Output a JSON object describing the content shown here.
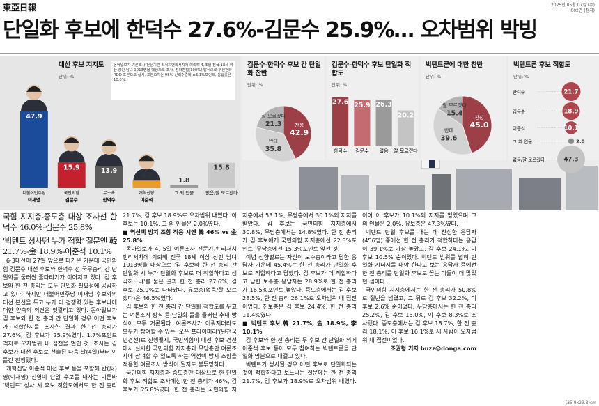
{
  "header": {
    "masthead": "東亞日報",
    "date": "2025년 05월 07일 (수)",
    "page": "002면 (정치)"
  },
  "headline": "단일화 후보에 한덕수 27.6%-김문수 25.9%… 오차범위 박빙",
  "chart_data": [
    {
      "type": "bar",
      "title": "대선 후보 지지도",
      "unit": "단위: %",
      "note": "동아일보가 여론조사 전문기관 리서치앤리서치에 의뢰해 4, 5일 전국 18세 이상 성인 남녀 1013명을 대상으로 조사. 전화면접(100%) 방식으로 무선전화 RDD 표본으로 실시. 표본오차는 95% 신뢰수준에 ±3.1%포인트, 응답률은 10.0%.",
      "groups": [
        "더불어민주당",
        "국민의힘",
        "무소속",
        "개혁신당",
        null,
        null
      ],
      "categories": [
        "이재명",
        "김문수",
        "한덕수",
        "이준석",
        "그 외 인물",
        "없음/잘 모르겠다"
      ],
      "values": [
        47.9,
        15.9,
        13.9,
        4.7,
        1.8,
        15.8
      ],
      "colors": [
        "#1b4c9c",
        "#c4202e",
        "#5a5a5a",
        "#eb9a2e",
        "#9a9a9a",
        "#c9c9c9"
      ]
    },
    {
      "type": "pie",
      "title": "김문수-한덕수 후보 간 단일화 찬반",
      "unit": "단위: %",
      "categories": [
        "찬성",
        "반대",
        "잘 모르겠다"
      ],
      "values": [
        42.9,
        35.8,
        21.3
      ],
      "colors": [
        "#9c3f47",
        "#d3d3d3",
        "#b3b3b3"
      ]
    },
    {
      "type": "bar",
      "title": "김문수-한덕수 후보 단일화 적합도",
      "unit": "단위: %",
      "categories": [
        "한덕수",
        "김문수",
        "없음",
        "잘 모르겠다"
      ],
      "values": [
        27.6,
        25.9,
        26.3,
        20.2
      ],
      "colors": [
        "#9c3f47",
        "#c46b72",
        "#9a9a9a",
        "#c4c4c4"
      ]
    },
    {
      "type": "pie",
      "title": "빅텐트론에 대한 찬반",
      "unit": "단위: %",
      "categories": [
        "찬성",
        "반대",
        "잘 모르겠다"
      ],
      "values": [
        45,
        39.6,
        15.4
      ],
      "value_labels": [
        "45.0",
        "39.6",
        "15.4"
      ],
      "colors": [
        "#9c3f47",
        "#d3d3d3",
        "#b3b3b3"
      ]
    },
    {
      "type": "bubble",
      "title": "빅텐트론 후보 적합도",
      "unit": "단위: %",
      "categories": [
        "한덕수",
        "김문수",
        "이준석",
        "그 외 인물",
        "없음/잘 모르겠다"
      ],
      "values": [
        21.7,
        18.9,
        10.1,
        2,
        47.3
      ],
      "value_labels": [
        "21.7",
        "18.9",
        "10.1",
        "2.0",
        "47.3"
      ],
      "colors": [
        "#b0454d",
        "#b0454d",
        "#b0454d",
        "#8a8a8a",
        "#c4c4c4"
      ]
    }
  ],
  "article": {
    "subheads": [
      "국힘 지지층-중도층 대상 조사선 한덕수 46.0%-김문수 25.8%",
      "'빅텐트 성사땐 누가 적합' 질문엔 韓 21.7%-金 18.9%-이준석 10.1%"
    ],
    "paragraphs": [
      "6·3대선이 27일 앞으로 다가온 가운데 국민의힘 김문수 대선 후보와 한덕수 전 국무총리 간 단일화를 둘러싼 줄다리기가 이어지고 있다. 김 후보와 한 전 총리는 모두 단일화 필요성에 공감하고 있다. 하지만 더불어민주당 이재명 후보와의 대선 본선을 두고 누가 더 경쟁력 있는 후보냐에 대한 양측의 의견은 엇갈리고 있다. 동아일보가 김 후보와 한 전 총리 간 단일화 경우 어떤 후보가 적합한지를 조사한 결과 한 전 총리가 27.6%, 김 후보가 25.9%였다. 1.7%포인트 격차로 오차범위 내 접전을 벌인 것. 조사는 김 후보가 대선 후보로 선출된 다음 날(4일)부터 이틀간 진행됐다.",
      "개혁신당 이준석 대선 후보 등을 포함해 반(反)명(이재명) 진영이 단일 후보를 내자는 이른바 '빅텐트' 성사 시 후보 적합도에서도 한 전 총리 21.7%, 김 후보 18.9%로 오차범위 내였다. 이 후보는 10.1%, 그 외 인물은 2.0%였다.",
      "■ 역선택 방지 조항 적용 시엔 韓 46% vs 金 25.8%",
      "동아일보가 4, 5일 여론조사 전문기관 리서치앤리서치에 의뢰해 전국 18세 이상 성인 남녀 1013명을 대상으로 '김 후보와 한 전 총리 간 단일화 시 누가 단일화 후보로 더 적합하다고 생각하느냐'를 물은 결과 한 전 총리 27.6%, 김 후보 25.9%로 나타났다. 유보층(없음/잘 모르겠다)은 46.5%였다.",
      "김 후보와 한 전 총리 간 단일화 적합도를 두고는 여론조사 방식 등 단일화 룰을 둘러싼 추대 방식이 모두 거론된다. 여론조사가 이뤄지더라도 모두가 참여할 수 있는 '오픈 프라이머리'(완전국민경선)로 진행될지, 국민의힘이 대선 후보 경선에서 실시한 국민의힘 지지층과 무당층만 여론조사에 참여할 수 있도록 하는 역선택 방지 조항을 적용한 여론조사 방식이 될지도 불투명하다.",
      "국민의힘 지지층과 중도층만 대상으로 한 단일화 후보 적합도 조사에선 한 전 총리가 46%, 김 후보가 25.8%였다. 한 전 총리는 국민의힘 지지층에서 53.1%, 무당층에서 30.1%의 지지를 받았다. 김 후보는 국민의힘 지지층에서 30.8%, 무당층에서는 14.8%였다. 한 전 총리가 김 후보에게 국민의힘 지지층에선 22.3%포인트, 무당층에선 15.3%포인트 앞선 것.",
      "이념 성향별로는 자신이 보수층이라고 답한 응답자 가운데 45.4%는 한 전 총리가 단일화 후보로 적합하다고 답했다. 김 후보가 더 적합하다고 답한 보수층 응답자는 28.9%로 한 전 총리가 16.5%포인트 높았다. 중도층에서는 김 후보 28.5%, 한 전 총리 26.1%로 오차범위 내 접전이었다. 진보층은 김 후보 24.4%, 한 전 총리 11.4%였다.",
      "■ 빅텐트 후보 韓 21.7%, 金 18.9%, 李 10.1%",
      "김 후보와 한 전 총리는 두 후보 간 단일화 외에 이준석 후보 등이 모두 참여하는 빅텐트론을 단일화 명분으로 내걸고 있다.",
      "빅텐트가 성사될 경우 어떤 후보로 단일화되는 것이 적합하다고 보느냐는 질문에는 한 전 총리 21.7%, 김 후보가 18.9%로 오차범위 내였다. 이어 이 후보가 10.1%의 지지를 얻었으며 그 외 인물은 2.0%, 유보층은 47.3%였다.",
      "빅텐트 단일 후보를 내는 데 찬성한 응답자(456명) 중에선 한 전 총리가 적합하다는 응답이 39.1%로 가장 높았고, 김 후보 24.1%, 이 후보 10.5% 순이었다. 빅텐트 범위를 넓혀 단일화 시너지를 내야 한다고 보는 응답자 중에선 한 전 총리를 단일화 후보로 꼽는 이들이 더 많았던 셈이다.",
      "국민의힘 지지층에서는 한 전 총리가 50.8%로 절반을 넘겼고, 그 뒤로 김 후보 32.2%, 이 후보 2.6% 순이었다. 무당층에서는 한 전 총리 25.2%, 김 후보 13.0%, 이 후보 8.3%로 조사됐다. 중도층에서는 김 후보 18.7%, 한 전 총리 18.1%, 이 후보 16.1%로 세 사람이 오차범위 내 접전이었다."
    ],
    "byline": "조권형 기자 buzz@donga.com"
  },
  "footer": "(35.9x23.3)cm"
}
